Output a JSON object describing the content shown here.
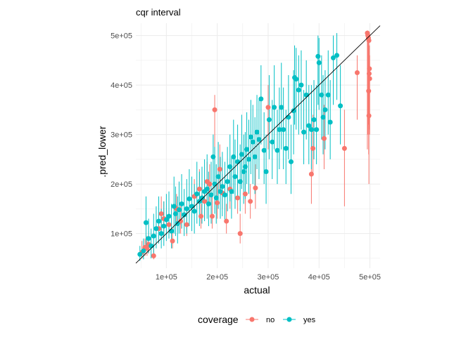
{
  "chart_data": {
    "type": "scatter",
    "title": "cqr interval",
    "xlabel": "actual",
    "ylabel": ".pred_lower",
    "xlim": [
      40000,
      520000
    ],
    "ylim": [
      30000,
      525000
    ],
    "x_ticks": [
      100000,
      200000,
      300000,
      400000,
      500000
    ],
    "x_tick_labels": [
      "1e+05",
      "2e+05",
      "3e+05",
      "4e+05",
      "5e+05"
    ],
    "y_ticks": [
      100000,
      200000,
      300000,
      400000,
      500000
    ],
    "y_tick_labels": [
      "1e+05",
      "2e+05",
      "3e+05",
      "4e+05",
      "5e+05"
    ],
    "grid": true,
    "reference_line": "y = x",
    "legend": {
      "title": "coverage",
      "position": "bottom",
      "entries": [
        "no",
        "yes"
      ]
    },
    "colors": {
      "no": "#F8766D",
      "yes": "#00BFC4",
      "reference": "#000000",
      "grid": "#ebebeb"
    },
    "series": [
      {
        "name": "no",
        "points": [
          [
            52000,
            62000,
            50000,
            85000
          ],
          [
            58000,
            72000,
            55000,
            90000
          ],
          [
            62000,
            70000,
            55000,
            95000
          ],
          [
            65000,
            78000,
            60000,
            105000
          ],
          [
            75000,
            55000,
            48000,
            75000
          ],
          [
            85000,
            110000,
            80000,
            140000
          ],
          [
            90000,
            140000,
            100000,
            175000
          ],
          [
            95000,
            130000,
            95000,
            165000
          ],
          [
            105000,
            118000,
            90000,
            150000
          ],
          [
            112000,
            85000,
            70000,
            110000
          ],
          [
            120000,
            150000,
            120000,
            180000
          ],
          [
            128000,
            125000,
            100000,
            160000
          ],
          [
            140000,
            118000,
            95000,
            145000
          ],
          [
            155000,
            175000,
            140000,
            210000
          ],
          [
            165000,
            190000,
            150000,
            230000
          ],
          [
            168000,
            135000,
            110000,
            160000
          ],
          [
            175000,
            165000,
            130000,
            200000
          ],
          [
            180000,
            205000,
            165000,
            245000
          ],
          [
            185000,
            200000,
            160000,
            240000
          ],
          [
            190000,
            135000,
            110000,
            175000
          ],
          [
            195000,
            350000,
            260000,
            380000
          ],
          [
            200000,
            162000,
            130000,
            200000
          ],
          [
            205000,
            230000,
            180000,
            280000
          ],
          [
            210000,
            182000,
            150000,
            220000
          ],
          [
            218000,
            125000,
            100000,
            160000
          ],
          [
            225000,
            190000,
            150000,
            230000
          ],
          [
            240000,
            172000,
            140000,
            210000
          ],
          [
            245000,
            100000,
            80000,
            140000
          ],
          [
            255000,
            180000,
            140000,
            220000
          ],
          [
            265000,
            165000,
            130000,
            200000
          ],
          [
            275000,
            192000,
            150000,
            240000
          ],
          [
            300000,
            355000,
            270000,
            400000
          ],
          [
            385000,
            220000,
            160000,
            300000
          ],
          [
            388000,
            272000,
            220000,
            340000
          ],
          [
            410000,
            292000,
            230000,
            360000
          ],
          [
            450000,
            272000,
            155000,
            350000
          ],
          [
            475000,
            425000,
            330000,
            460000
          ],
          [
            495000,
            505000,
            270000,
            510000
          ],
          [
            496000,
            500000,
            300000,
            510000
          ],
          [
            497000,
            495000,
            320000,
            505000
          ],
          [
            498000,
            490000,
            350000,
            505000
          ],
          [
            499000,
            433000,
            330000,
            480000
          ],
          [
            498500,
            423000,
            310000,
            470000
          ],
          [
            499500,
            413000,
            300000,
            460000
          ],
          [
            497500,
            388000,
            260000,
            440000
          ],
          [
            498000,
            338000,
            200000,
            400000
          ]
        ]
      },
      {
        "name": "yes",
        "points": [
          [
            48000,
            58000,
            45000,
            75000
          ],
          [
            55000,
            65000,
            48000,
            90000
          ],
          [
            60000,
            122000,
            70000,
            175000
          ],
          [
            65000,
            90000,
            60000,
            130000
          ],
          [
            70000,
            75000,
            50000,
            110000
          ],
          [
            75000,
            95000,
            60000,
            140000
          ],
          [
            80000,
            110000,
            70000,
            155000
          ],
          [
            85000,
            125000,
            80000,
            175000
          ],
          [
            90000,
            100000,
            70000,
            150000
          ],
          [
            95000,
            115000,
            75000,
            165000
          ],
          [
            100000,
            128000,
            85000,
            180000
          ],
          [
            105000,
            135000,
            90000,
            185000
          ],
          [
            110000,
            105000,
            70000,
            160000
          ],
          [
            115000,
            155000,
            100000,
            215000
          ],
          [
            118000,
            140000,
            95000,
            195000
          ],
          [
            122000,
            120000,
            80000,
            175000
          ],
          [
            125000,
            148000,
            100000,
            205000
          ],
          [
            130000,
            160000,
            110000,
            220000
          ],
          [
            135000,
            138000,
            95000,
            190000
          ],
          [
            140000,
            150000,
            100000,
            210000
          ],
          [
            145000,
            170000,
            115000,
            230000
          ],
          [
            150000,
            155000,
            105000,
            215000
          ],
          [
            155000,
            145000,
            100000,
            200000
          ],
          [
            160000,
            180000,
            120000,
            245000
          ],
          [
            165000,
            165000,
            115000,
            225000
          ],
          [
            170000,
            172000,
            120000,
            235000
          ],
          [
            175000,
            185000,
            125000,
            250000
          ],
          [
            180000,
            190000,
            130000,
            260000
          ],
          [
            183000,
            160000,
            115000,
            225000
          ],
          [
            188000,
            178000,
            120000,
            245000
          ],
          [
            192000,
            255000,
            180000,
            300000
          ],
          [
            195000,
            200000,
            140000,
            275000
          ],
          [
            198000,
            172000,
            120000,
            240000
          ],
          [
            202000,
            215000,
            150000,
            285000
          ],
          [
            206000,
            185000,
            130000,
            255000
          ],
          [
            210000,
            195000,
            135000,
            265000
          ],
          [
            215000,
            178000,
            125000,
            245000
          ],
          [
            220000,
            205000,
            145000,
            275000
          ],
          [
            225000,
            235000,
            165000,
            300000
          ],
          [
            228000,
            185000,
            130000,
            255000
          ],
          [
            232000,
            255000,
            180000,
            330000
          ],
          [
            235000,
            215000,
            150000,
            290000
          ],
          [
            240000,
            245000,
            170000,
            320000
          ],
          [
            245000,
            205000,
            145000,
            280000
          ],
          [
            248000,
            260000,
            190000,
            340000
          ],
          [
            252000,
            225000,
            160000,
            300000
          ],
          [
            255000,
            235000,
            170000,
            305000
          ],
          [
            258000,
            270000,
            200000,
            345000
          ],
          [
            262000,
            250000,
            180000,
            330000
          ],
          [
            266000,
            295000,
            220000,
            370000
          ],
          [
            270000,
            285000,
            200000,
            360000
          ],
          [
            274000,
            255000,
            180000,
            335000
          ],
          [
            278000,
            305000,
            230000,
            380000
          ],
          [
            282000,
            290000,
            210000,
            370000
          ],
          [
            286000,
            372000,
            280000,
            440000
          ],
          [
            292000,
            268000,
            200000,
            345000
          ],
          [
            296000,
            225000,
            160000,
            300000
          ],
          [
            302000,
            330000,
            250000,
            420000
          ],
          [
            308000,
            285000,
            210000,
            370000
          ],
          [
            312000,
            355000,
            270000,
            440000
          ],
          [
            318000,
            268000,
            200000,
            350000
          ],
          [
            322000,
            310000,
            230000,
            395000
          ],
          [
            326000,
            355000,
            270000,
            445000
          ],
          [
            330000,
            310000,
            230000,
            395000
          ],
          [
            335000,
            272000,
            200000,
            350000
          ],
          [
            340000,
            335000,
            250000,
            420000
          ],
          [
            345000,
            245000,
            180000,
            320000
          ],
          [
            350000,
            348000,
            260000,
            430000
          ],
          [
            352000,
            415000,
            320000,
            480000
          ],
          [
            355000,
            412000,
            310000,
            475000
          ],
          [
            360000,
            390000,
            300000,
            460000
          ],
          [
            365000,
            400000,
            310000,
            470000
          ],
          [
            370000,
            305000,
            240000,
            390000
          ],
          [
            375000,
            380000,
            290000,
            450000
          ],
          [
            380000,
            318000,
            240000,
            400000
          ],
          [
            385000,
            310000,
            230000,
            400000
          ],
          [
            390000,
            330000,
            250000,
            410000
          ],
          [
            395000,
            310000,
            240000,
            400000
          ],
          [
            398000,
            458000,
            360000,
            500000
          ],
          [
            400000,
            445000,
            350000,
            495000
          ],
          [
            405000,
            380000,
            290000,
            460000
          ],
          [
            408000,
            335000,
            260000,
            420000
          ],
          [
            412000,
            350000,
            270000,
            430000
          ],
          [
            418000,
            380000,
            300000,
            470000
          ],
          [
            422000,
            325000,
            250000,
            410000
          ],
          [
            428000,
            455000,
            360000,
            500000
          ],
          [
            435000,
            460000,
            370000,
            505000
          ],
          [
            442000,
            358000,
            280000,
            440000
          ]
        ]
      }
    ]
  }
}
